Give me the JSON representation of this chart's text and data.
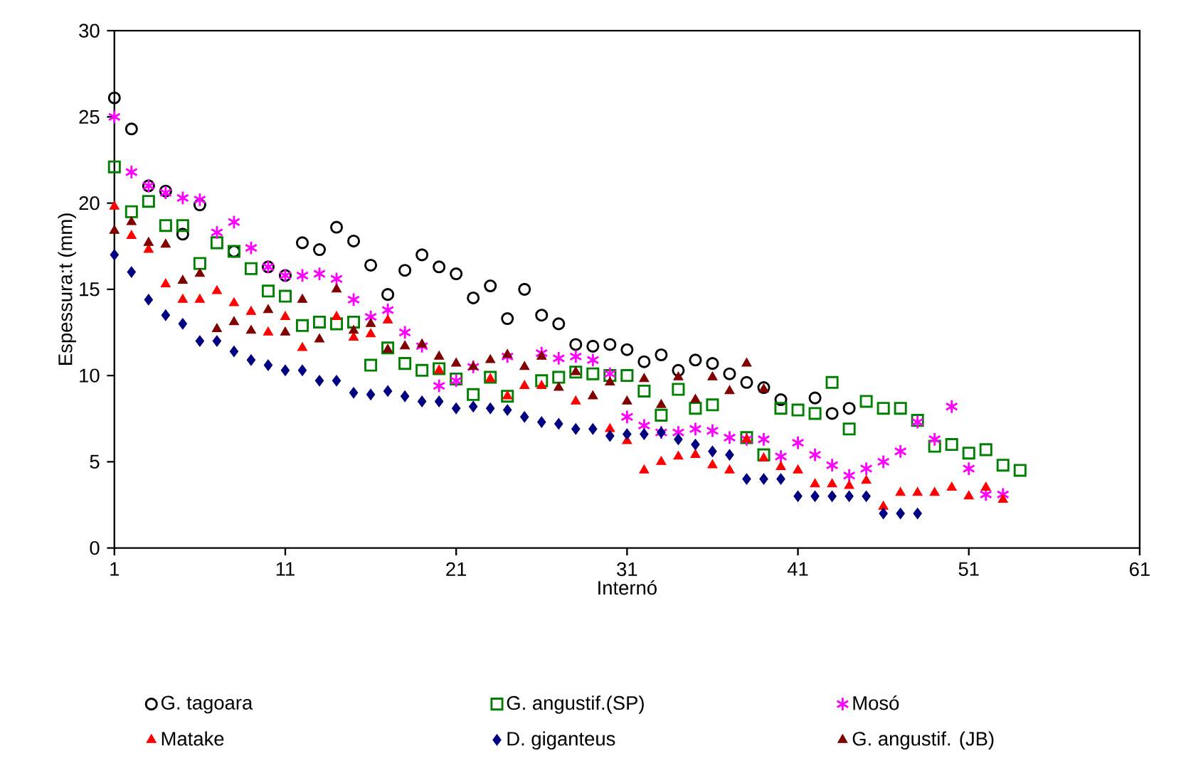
{
  "chart_data": {
    "type": "scatter",
    "xlabel": "Internó",
    "ylabel": "Espessura:t (mm)",
    "x": [
      1,
      2,
      3,
      4,
      5,
      6,
      7,
      8,
      9,
      10,
      11,
      12,
      13,
      14,
      15,
      16,
      17,
      18,
      19,
      20,
      21,
      22,
      23,
      24,
      25,
      26,
      27,
      28,
      29,
      30,
      31,
      32,
      33,
      34,
      35,
      36,
      37,
      38,
      39,
      40,
      41,
      42,
      43,
      44,
      45,
      46,
      47,
      48,
      49,
      50,
      51,
      52,
      53,
      54
    ],
    "xlim": [
      1,
      61
    ],
    "xticks": [
      1,
      11,
      21,
      31,
      41,
      51,
      61
    ],
    "ylim": [
      0,
      30
    ],
    "yticks": [
      0,
      5,
      10,
      15,
      20,
      25,
      30
    ],
    "grid": false,
    "legend": "bottom",
    "series": [
      {
        "name": "G. tagoara",
        "color": "#000000",
        "marker": "circle",
        "values": [
          26.1,
          24.3,
          21.0,
          20.7,
          18.2,
          19.9,
          null,
          17.2,
          null,
          16.3,
          15.8,
          17.7,
          17.3,
          18.6,
          17.8,
          16.4,
          14.7,
          16.1,
          17.0,
          16.3,
          15.9,
          14.5,
          15.2,
          13.3,
          15.0,
          13.5,
          13.0,
          11.8,
          11.7,
          11.8,
          11.5,
          10.8,
          11.2,
          10.3,
          10.9,
          10.7,
          10.1,
          9.6,
          9.3,
          8.6,
          null,
          8.7,
          7.8,
          8.1,
          null,
          null,
          null,
          null,
          null,
          null,
          null,
          null,
          null,
          null
        ]
      },
      {
        "name": "G. angustif.(SP)",
        "color": "#008000",
        "marker": "square",
        "values": [
          22.1,
          19.5,
          20.1,
          18.7,
          18.7,
          16.5,
          17.7,
          17.2,
          16.2,
          14.9,
          14.6,
          12.9,
          13.1,
          13.0,
          13.1,
          10.6,
          11.6,
          10.7,
          10.3,
          10.4,
          9.8,
          8.9,
          9.9,
          8.8,
          null,
          9.7,
          9.9,
          10.2,
          10.1,
          10.0,
          10.0,
          9.1,
          7.7,
          9.2,
          8.1,
          8.3,
          null,
          6.4,
          5.4,
          8.1,
          8.0,
          7.8,
          9.6,
          6.9,
          8.5,
          8.1,
          8.1,
          7.4,
          5.9,
          6.0,
          5.5,
          5.7,
          4.8,
          4.5
        ]
      },
      {
        "name": "Mosó",
        "color": "#ff00ff",
        "marker": "cross",
        "values": [
          25.0,
          21.8,
          21.0,
          20.6,
          20.3,
          20.2,
          18.3,
          18.9,
          17.4,
          16.3,
          15.8,
          15.8,
          15.9,
          15.6,
          14.4,
          13.4,
          13.8,
          12.5,
          11.7,
          9.4,
          9.7,
          10.5,
          null,
          11.1,
          null,
          11.3,
          11.0,
          11.1,
          10.9,
          10.1,
          7.6,
          7.1,
          6.7,
          6.7,
          6.9,
          6.8,
          6.4,
          6.3,
          6.3,
          5.3,
          6.1,
          5.4,
          4.8,
          4.2,
          4.6,
          5.0,
          5.6,
          7.3,
          6.3,
          8.2,
          4.6,
          3.1,
          3.1,
          null
        ]
      },
      {
        "name": "Matake",
        "color": "#ff0000",
        "marker": "triangle",
        "values": [
          19.8,
          18.1,
          17.3,
          15.3,
          14.4,
          14.4,
          14.9,
          14.2,
          13.7,
          12.5,
          13.4,
          11.6,
          null,
          13.4,
          12.2,
          12.4,
          13.2,
          null,
          null,
          10.3,
          null,
          null,
          9.8,
          8.8,
          9.4,
          9.4,
          null,
          8.5,
          null,
          6.9,
          6.2,
          4.5,
          5.0,
          5.3,
          5.4,
          4.8,
          4.5,
          6.3,
          5.2,
          4.7,
          4.5,
          3.7,
          3.7,
          3.6,
          3.9,
          2.4,
          3.2,
          3.2,
          3.2,
          3.5,
          3.0,
          3.5,
          2.8,
          null
        ]
      },
      {
        "name": "D. giganteus",
        "color": "#000080",
        "marker": "diamond",
        "values": [
          17.0,
          16.0,
          14.4,
          13.5,
          13.0,
          12.0,
          12.0,
          11.4,
          10.9,
          10.6,
          10.3,
          10.3,
          9.7,
          9.7,
          9.0,
          8.9,
          9.1,
          8.8,
          8.5,
          8.5,
          8.1,
          8.2,
          8.1,
          8.0,
          7.6,
          7.3,
          7.2,
          6.9,
          6.9,
          6.5,
          6.6,
          6.6,
          6.7,
          6.3,
          6.0,
          5.6,
          5.4,
          4.0,
          4.0,
          4.0,
          3.0,
          3.0,
          3.0,
          3.0,
          3.0,
          2.0,
          2.0,
          2.0,
          null,
          null,
          null,
          null,
          null,
          null
        ]
      },
      {
        "name": "G. angustif. (JB)",
        "color": "#800000",
        "marker": "triangle",
        "values": [
          18.4,
          18.9,
          17.7,
          17.6,
          15.5,
          15.9,
          12.7,
          13.1,
          12.6,
          13.8,
          12.5,
          14.4,
          12.1,
          15.0,
          12.6,
          13.0,
          11.5,
          11.7,
          11.8,
          11.1,
          10.7,
          10.5,
          10.9,
          11.2,
          10.5,
          11.1,
          9.3,
          10.2,
          8.8,
          9.6,
          8.5,
          9.8,
          8.3,
          9.9,
          8.6,
          9.9,
          9.1,
          10.7,
          9.2,
          null,
          null,
          null,
          null,
          null,
          null,
          null,
          null,
          null,
          null,
          null,
          null,
          null,
          null,
          null
        ]
      }
    ]
  }
}
